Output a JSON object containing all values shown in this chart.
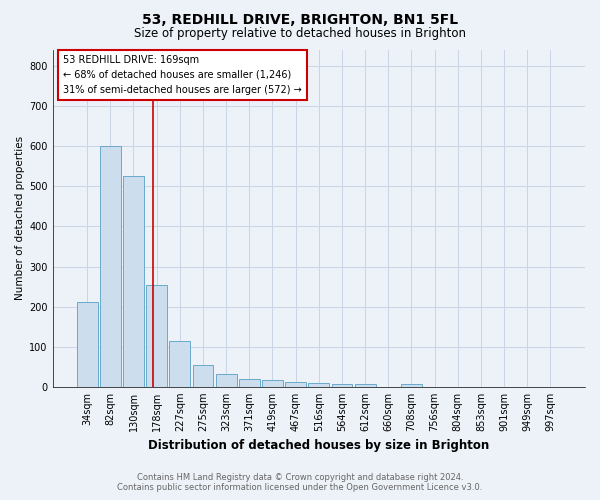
{
  "title": "53, REDHILL DRIVE, BRIGHTON, BN1 5FL",
  "subtitle": "Size of property relative to detached houses in Brighton",
  "xlabel": "Distribution of detached houses by size in Brighton",
  "ylabel": "Number of detached properties",
  "footnote": "Contains HM Land Registry data © Crown copyright and database right 2024.\nContains public sector information licensed under the Open Government Licence v3.0.",
  "bin_labels": [
    "34sqm",
    "82sqm",
    "130sqm",
    "178sqm",
    "227sqm",
    "275sqm",
    "323sqm",
    "371sqm",
    "419sqm",
    "467sqm",
    "516sqm",
    "564sqm",
    "612sqm",
    "660sqm",
    "708sqm",
    "756sqm",
    "804sqm",
    "853sqm",
    "901sqm",
    "949sqm",
    "997sqm"
  ],
  "bar_values": [
    212,
    600,
    525,
    255,
    115,
    55,
    33,
    20,
    18,
    12,
    10,
    8,
    8,
    0,
    8,
    0,
    0,
    0,
    0,
    0,
    0
  ],
  "bar_color": "#ccdded",
  "bar_edge_color": "#6aaacb",
  "annotation_text": "53 REDHILL DRIVE: 169sqm\n← 68% of detached houses are smaller (1,246)\n31% of semi-detached houses are larger (572) →",
  "annotation_box_color": "#ffffff",
  "annotation_border_color": "#cc0000",
  "ylim": [
    0,
    840
  ],
  "yticks": [
    0,
    100,
    200,
    300,
    400,
    500,
    600,
    700,
    800
  ],
  "red_line_color": "#cc0000",
  "grid_color": "#c8d5e5",
  "background_color": "#edf2f8",
  "title_fontsize": 10,
  "subtitle_fontsize": 8.5,
  "xlabel_fontsize": 8.5,
  "ylabel_fontsize": 7.5,
  "tick_fontsize": 7,
  "annotation_fontsize": 7,
  "footnote_fontsize": 6,
  "footnote_color": "#666666"
}
